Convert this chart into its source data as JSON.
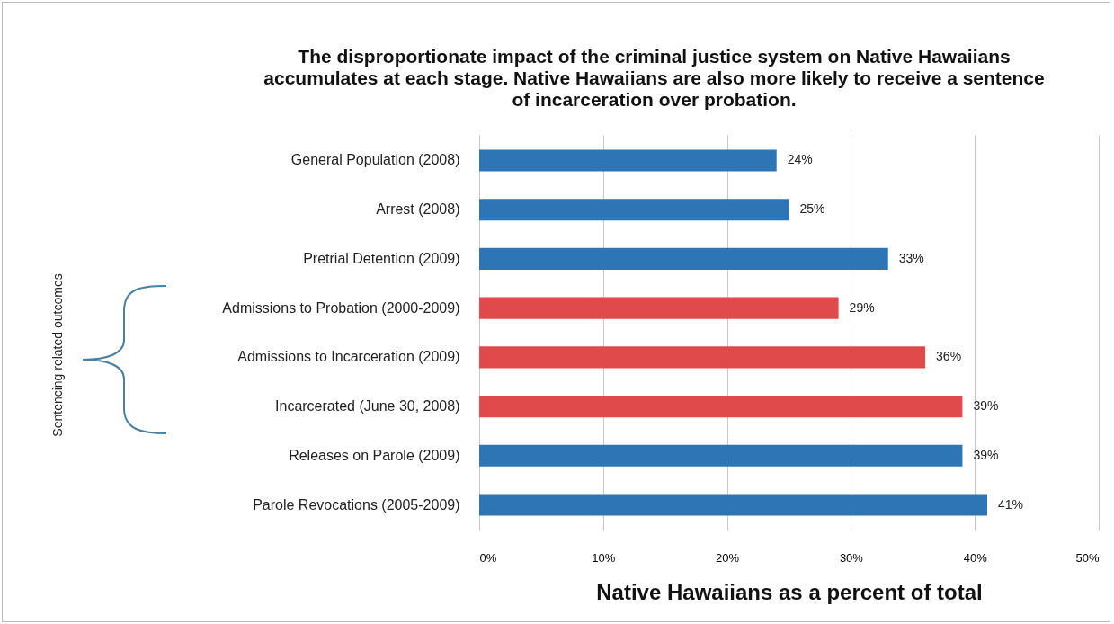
{
  "chart_data": {
    "type": "bar",
    "orientation": "horizontal",
    "title": "The disproportionate impact of the criminal justice system on Native Hawaiians accumulates at each stage. Native Hawaiians are also more likely to receive a sentence of  incarceration over probation.",
    "xlabel": "Native Hawaiians as a percent of total",
    "annotations": [
      "Sentencing related outcomes"
    ],
    "categories": [
      "General Population (2008)",
      "Arrest (2008)",
      "Pretrial Detention (2009)",
      "Admissions to Probation (2000-2009)",
      "Admissions to Incarceration (2009)",
      "Incarcerated (June 30, 2008)",
      "Releases on Parole (2009)",
      "Parole Revocations (2005-2009)"
    ],
    "values": [
      24,
      25,
      33,
      29,
      36,
      39,
      39,
      41
    ],
    "value_labels": [
      "24%",
      "25%",
      "33%",
      "29%",
      "36%",
      "39%",
      "39%",
      "41%"
    ],
    "colors": [
      "#2e75b6",
      "#2e75b6",
      "#2e75b6",
      "#e04a4a",
      "#e04a4a",
      "#e04a4a",
      "#2e75b6",
      "#2e75b6"
    ],
    "xlim": [
      0,
      50
    ],
    "xticks": [
      {
        "value": 0,
        "label": "0%"
      },
      {
        "value": 10,
        "label": "10%"
      },
      {
        "value": 20,
        "label": "20%"
      },
      {
        "value": 30,
        "label": "30%"
      },
      {
        "value": 40,
        "label": "40%"
      },
      {
        "value": 50,
        "label": "50%"
      }
    ],
    "grid": "x"
  }
}
